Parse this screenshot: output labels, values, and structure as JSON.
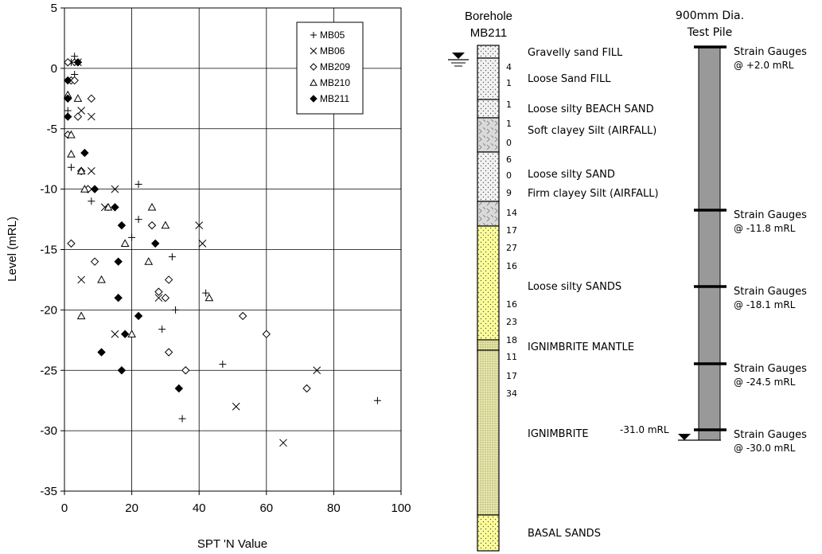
{
  "chart_data": {
    "type": "scatter",
    "xlabel": "SPT 'N Value",
    "ylabel": "Level (mRL)",
    "xlim": [
      0,
      100
    ],
    "ylim": [
      -35,
      5
    ],
    "x_ticks": [
      "0",
      "20",
      "40",
      "60",
      "80",
      "100"
    ],
    "y_ticks": [
      "5",
      "0",
      "-5",
      "-10",
      "-15",
      "-20",
      "-25",
      "-30",
      "-35"
    ],
    "grid": true,
    "legend_position": "top-right",
    "series": [
      {
        "name": "MB05",
        "marker": "plus",
        "points": [
          [
            1,
            -2.5
          ],
          [
            1,
            -3.5
          ],
          [
            2,
            0.5
          ],
          [
            3,
            -1
          ],
          [
            3,
            -0.5
          ],
          [
            3,
            1
          ],
          [
            2,
            -8.2
          ],
          [
            8,
            -11
          ],
          [
            22,
            -9.6
          ],
          [
            20,
            -14
          ],
          [
            22,
            -12.5
          ],
          [
            32,
            -15.6
          ],
          [
            33,
            -20
          ],
          [
            29,
            -21.6
          ],
          [
            42,
            -18.6
          ],
          [
            47,
            -24.5
          ],
          [
            35,
            -29
          ],
          [
            93,
            -27.5
          ]
        ]
      },
      {
        "name": "MB06",
        "marker": "cross",
        "points": [
          [
            2,
            0.5
          ],
          [
            4,
            0.5
          ],
          [
            5,
            -3.5
          ],
          [
            8,
            -4
          ],
          [
            8,
            -8.5
          ],
          [
            15,
            -10
          ],
          [
            12,
            -11.5
          ],
          [
            5,
            -17.5
          ],
          [
            40,
            -13
          ],
          [
            41,
            -14.5
          ],
          [
            28,
            -19
          ],
          [
            15,
            -22
          ],
          [
            75,
            -25
          ],
          [
            51,
            -28
          ],
          [
            65,
            -31
          ]
        ]
      },
      {
        "name": "MB209",
        "marker": "diamond",
        "points": [
          [
            1,
            0.5
          ],
          [
            2,
            -1
          ],
          [
            3,
            -1
          ],
          [
            1,
            -5.5
          ],
          [
            4,
            -4
          ],
          [
            5,
            -8.5
          ],
          [
            7,
            -10
          ],
          [
            8,
            -2.5
          ],
          [
            2,
            -14.5
          ],
          [
            9,
            -16
          ],
          [
            26,
            -13
          ],
          [
            28,
            -18.5
          ],
          [
            30,
            -19
          ],
          [
            31,
            -17.5
          ],
          [
            31,
            -23.5
          ],
          [
            36,
            -25
          ],
          [
            53,
            -20.5
          ],
          [
            60,
            -22
          ],
          [
            72,
            -26.5
          ]
        ]
      },
      {
        "name": "MB210",
        "marker": "triangle",
        "points": [
          [
            1,
            -2.2
          ],
          [
            2,
            -5.5
          ],
          [
            2,
            -7.1
          ],
          [
            4,
            -2.5
          ],
          [
            5,
            -8.5
          ],
          [
            6,
            -10
          ],
          [
            13,
            -11.5
          ],
          [
            18,
            -14.5
          ],
          [
            26,
            -11.5
          ],
          [
            30,
            -13
          ],
          [
            25,
            -16
          ],
          [
            11,
            -17.5
          ],
          [
            5,
            -20.5
          ],
          [
            20,
            -22
          ],
          [
            43,
            -19
          ]
        ]
      },
      {
        "name": "MB211",
        "marker": "filled-diamond",
        "points": [
          [
            1,
            -1
          ],
          [
            1,
            -2.5
          ],
          [
            1,
            -4
          ],
          [
            4,
            0.5
          ],
          [
            6,
            -7
          ],
          [
            9,
            -10
          ],
          [
            15,
            -11.5
          ],
          [
            17,
            -13
          ],
          [
            16,
            -16
          ],
          [
            16,
            -19
          ],
          [
            27,
            -14.5
          ],
          [
            22,
            -20.5
          ],
          [
            18,
            -22
          ],
          [
            11,
            -23.5
          ],
          [
            17,
            -25
          ],
          [
            34,
            -26.5
          ]
        ]
      }
    ]
  },
  "borehole": {
    "title_line1": "Borehole",
    "title_line2": "MB211",
    "spt_values": [
      "4",
      "1",
      "1",
      "1",
      "0",
      "6",
      "0",
      "9",
      "14",
      "17",
      "27",
      "16",
      "16",
      "23",
      "18",
      "11",
      "17",
      "34"
    ],
    "layers": [
      {
        "name": "Gravelly sand FILL",
        "fill": "#f2f2f2"
      },
      {
        "name": "Loose Sand FILL",
        "fill": "#f2f2f2"
      },
      {
        "name": "Loose silty BEACH SAND",
        "fill": "#f2f2f2"
      },
      {
        "name": "Soft clayey Silt (AIRFALL)",
        "fill": "#d9d9d9"
      },
      {
        "name": "Loose silty SAND",
        "fill": "#f2f2f2"
      },
      {
        "name": "Firm clayey Silt (AIRFALL)",
        "fill": "#d9d9d9"
      },
      {
        "name": "Loose silty SANDS",
        "fill": "#ffff99"
      },
      {
        "name": "IGNIMBRITE MANTLE",
        "fill": "#e6e6a0"
      },
      {
        "name": "IGNIMBRITE",
        "fill": "#e8e8a8"
      },
      {
        "name": "BASAL SANDS",
        "fill": "#ffff99"
      }
    ]
  },
  "pile": {
    "title_line1": "900mm Dia.",
    "title_line2": "Test Pile",
    "toe_label": "-31.0 mRL",
    "fill": "#999999",
    "gauges": [
      {
        "line1": "Strain Gauges",
        "line2": "@ +2.0 mRL"
      },
      {
        "line1": "Strain Gauges",
        "line2": "@ -11.8 mRL"
      },
      {
        "line1": "Strain Gauges",
        "line2": "@ -18.1 mRL"
      },
      {
        "line1": "Strain Gauges",
        "line2": "@ -24.5 mRL"
      },
      {
        "line1": "Strain Gauges",
        "line2": "@ -30.0 mRL"
      }
    ]
  }
}
